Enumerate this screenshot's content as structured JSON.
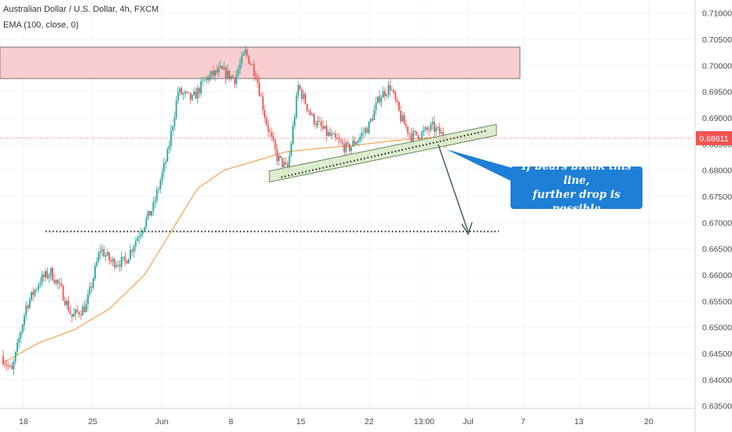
{
  "header": {
    "symbol_title": "Australian Dollar / U.S. Dollar, 4h, FXCM",
    "indicator": "EMA (100, close, 0)"
  },
  "colors": {
    "bull": "#26a69a",
    "bear": "#ef5350",
    "ema": "#f7a14f",
    "resistance_fill": "#f8c6c8",
    "support_fill": "#d7ecc9",
    "callout": "#1e7fd6",
    "price_tag": "#ef5350"
  },
  "annotation": {
    "line1": "If bears break this line,",
    "line2": "further drop is possible"
  },
  "chart_data": {
    "type": "candlestick",
    "symbol": "AUD/USD",
    "timeframe": "4h",
    "source": "FXCM",
    "ylim": [
      0.6345,
      0.7125
    ],
    "y_ticks": [
      "0.63500",
      "0.64000",
      "0.64500",
      "0.65000",
      "0.65500",
      "0.66000",
      "0.66500",
      "0.67000",
      "0.67500",
      "0.68000",
      "0.68500",
      "0.69000",
      "0.69500",
      "0.70000",
      "0.70500",
      "0.71000"
    ],
    "x_ticks": [
      "18",
      "25",
      "Jun",
      "8",
      "15",
      "22",
      "13:00",
      "Jul",
      "7",
      "13",
      "20"
    ],
    "last_price": "0.68611",
    "ema_period": 100,
    "anchors": [
      [
        0,
        0.6445
      ],
      [
        6,
        0.6415
      ],
      [
        14,
        0.654
      ],
      [
        22,
        0.659
      ],
      [
        28,
        0.6605
      ],
      [
        34,
        0.657
      ],
      [
        40,
        0.652
      ],
      [
        48,
        0.654
      ],
      [
        56,
        0.665
      ],
      [
        62,
        0.6625
      ],
      [
        70,
        0.6625
      ],
      [
        78,
        0.668
      ],
      [
        86,
        0.673
      ],
      [
        94,
        0.683
      ],
      [
        100,
        0.695
      ],
      [
        108,
        0.6935
      ],
      [
        116,
        0.6975
      ],
      [
        124,
        0.699
      ],
      [
        132,
        0.6975
      ],
      [
        138,
        0.7025
      ],
      [
        144,
        0.6985
      ],
      [
        150,
        0.689
      ],
      [
        156,
        0.6825
      ],
      [
        162,
        0.68
      ],
      [
        168,
        0.696
      ],
      [
        176,
        0.69
      ],
      [
        184,
        0.687
      ],
      [
        190,
        0.6855
      ],
      [
        196,
        0.684
      ],
      [
        202,
        0.686
      ],
      [
        208,
        0.6885
      ],
      [
        214,
        0.694
      ],
      [
        220,
        0.696
      ],
      [
        226,
        0.69
      ],
      [
        232,
        0.6865
      ],
      [
        238,
        0.687
      ],
      [
        244,
        0.6882
      ],
      [
        251,
        0.6863
      ]
    ],
    "ema_anchors": [
      [
        0,
        0.6432
      ],
      [
        20,
        0.647
      ],
      [
        40,
        0.6495
      ],
      [
        60,
        0.6535
      ],
      [
        80,
        0.66
      ],
      [
        100,
        0.671
      ],
      [
        110,
        0.6765
      ],
      [
        125,
        0.68
      ],
      [
        140,
        0.6815
      ],
      [
        160,
        0.6835
      ],
      [
        180,
        0.6842
      ],
      [
        200,
        0.6848
      ],
      [
        220,
        0.6856
      ],
      [
        240,
        0.6862
      ],
      [
        251,
        0.6863
      ]
    ],
    "resistance_zone": {
      "from": 0.6975,
      "to": 0.7035
    },
    "support_channel": {
      "from_bar": 148,
      "to_bar": 270,
      "y_start": 0.6788,
      "y_end": 0.6877
    },
    "target_level": 0.6683,
    "target_line_bars": [
      24,
      270
    ]
  }
}
